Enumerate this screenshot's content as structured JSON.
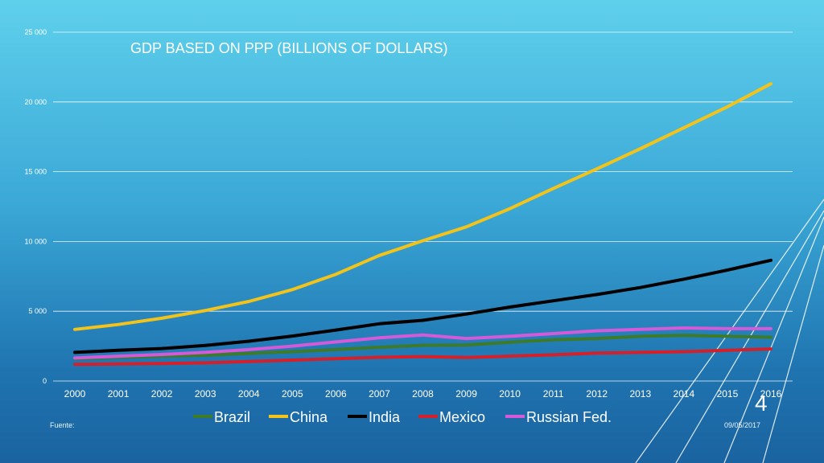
{
  "slide": {
    "number": "4",
    "footer_left": "Fuente:",
    "footer_right": "09/05/2017"
  },
  "chart_data": {
    "type": "line",
    "title": "GDP BASED ON PPP (BILLIONS OF DOLLARS)",
    "xlabel": "",
    "ylabel": "",
    "x": [
      "2000",
      "2001",
      "2002",
      "2003",
      "2004",
      "2005",
      "2006",
      "2007",
      "2008",
      "2009",
      "2010",
      "2011",
      "2012",
      "2013",
      "2014",
      "2015",
      "2016"
    ],
    "ylim": [
      0,
      25000
    ],
    "yticks": [
      0,
      5000,
      10000,
      15000,
      20000,
      25000
    ],
    "ytick_labels": [
      "0",
      "5 000",
      "10 000",
      "15 000",
      "20 000",
      "25 000"
    ],
    "grid": true,
    "legend_position": "bottom",
    "series": [
      {
        "name": "Brazil",
        "color": "#3d7a2a",
        "values": [
          1600,
          1700,
          1780,
          1850,
          1980,
          2100,
          2250,
          2420,
          2560,
          2580,
          2780,
          2950,
          3050,
          3200,
          3280,
          3200,
          3140
        ]
      },
      {
        "name": "China",
        "color": "#f2c31b",
        "values": [
          3700,
          4050,
          4500,
          5050,
          5700,
          6550,
          7650,
          9000,
          10050,
          11050,
          12350,
          13800,
          15200,
          16650,
          18150,
          19650,
          21300
        ]
      },
      {
        "name": "India",
        "color": "#000000",
        "values": [
          2050,
          2200,
          2330,
          2550,
          2850,
          3220,
          3650,
          4100,
          4350,
          4800,
          5300,
          5750,
          6200,
          6700,
          7300,
          7950,
          8650
        ]
      },
      {
        "name": "Mexico",
        "color": "#d4202a",
        "values": [
          1200,
          1220,
          1250,
          1300,
          1400,
          1500,
          1600,
          1700,
          1750,
          1680,
          1780,
          1880,
          2000,
          2050,
          2100,
          2200,
          2300
        ]
      },
      {
        "name": "Russian Fed.",
        "color": "#d35ad8",
        "values": [
          1650,
          1780,
          1900,
          2050,
          2250,
          2500,
          2800,
          3100,
          3300,
          3050,
          3200,
          3400,
          3600,
          3700,
          3800,
          3750,
          3750
        ]
      }
    ]
  }
}
